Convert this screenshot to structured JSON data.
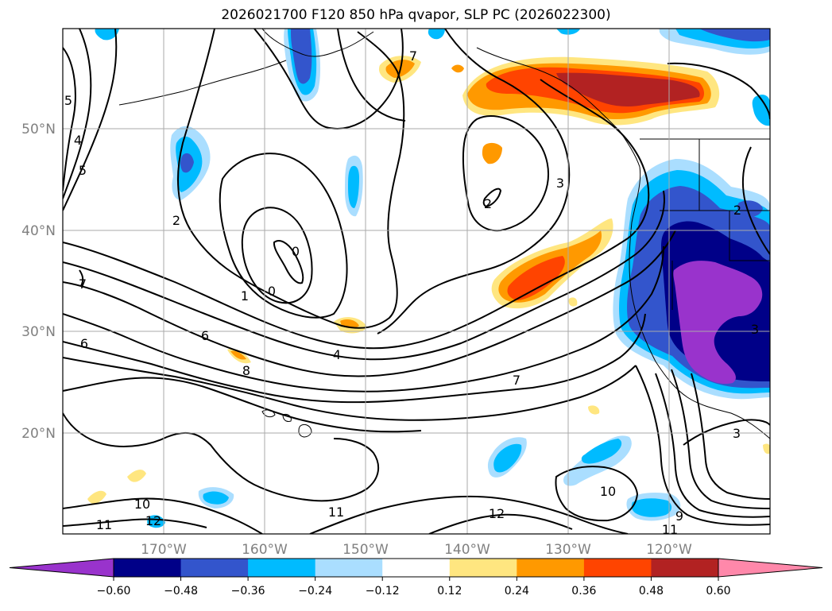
{
  "title": "2026021700 F120 850 hPa qvapor, SLP PC (2026022300)",
  "lat_labels": [
    "50°N",
    "40°N",
    "30°N",
    "20°N"
  ],
  "lon_labels": [
    "170°W",
    "160°W",
    "150°W",
    "140°W",
    "130°W",
    "120°W"
  ],
  "contour_labels": [
    "5",
    "4",
    "5",
    "2",
    "0",
    "0",
    "1",
    "6",
    "8",
    "4",
    "7",
    "6",
    "7",
    "3",
    "3",
    "2",
    "2",
    "3",
    "10",
    "11",
    "12",
    "12",
    "11",
    "10",
    "11",
    "9",
    "7"
  ],
  "colorbar": {
    "tick_labels": [
      "−0.60",
      "−0.48",
      "−0.36",
      "−0.24",
      "−0.12",
      "0.12",
      "0.24",
      "0.36",
      "0.48",
      "0.60"
    ],
    "colors": [
      "#9933cc",
      "#000088",
      "#3355cc",
      "#00bbff",
      "#aadeff",
      "#ffffff",
      "#ffe680",
      "#ff9900",
      "#ff4400",
      "#b22222",
      "#ff88aa"
    ]
  },
  "colors": {
    "grid": "#aaaaaa",
    "axis_label": "#808080",
    "contour": "#000000"
  }
}
